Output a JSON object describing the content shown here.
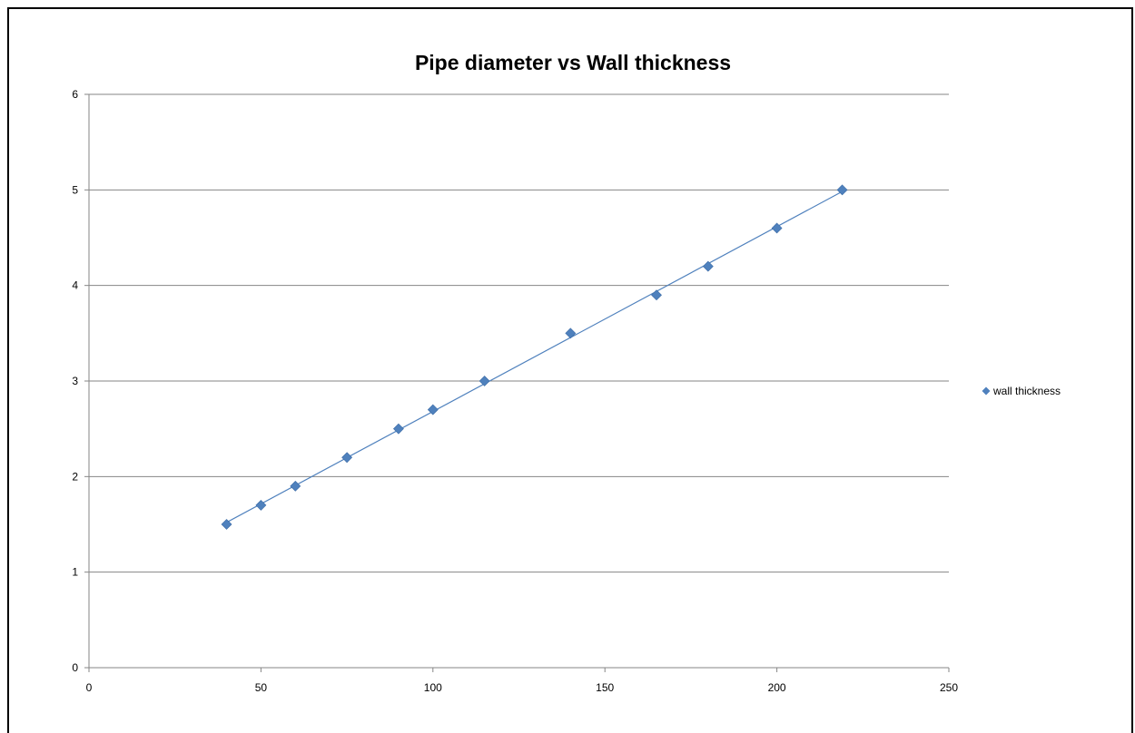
{
  "chart_data": {
    "type": "scatter",
    "title": "Pipe diameter vs Wall thickness",
    "xlabel": "",
    "ylabel": "",
    "xlim": [
      0,
      250
    ],
    "ylim": [
      0,
      6
    ],
    "x_ticks": [
      0,
      50,
      100,
      150,
      200,
      250
    ],
    "y_ticks": [
      0,
      1,
      2,
      3,
      4,
      5,
      6
    ],
    "grid": {
      "horizontal": true,
      "vertical": false
    },
    "legend_position": "right",
    "trendline": "linear",
    "series": [
      {
        "name": "wall thickness",
        "color": "#4F81BD",
        "marker": "diamond",
        "points": [
          {
            "x": 40,
            "y": 1.5
          },
          {
            "x": 50,
            "y": 1.7
          },
          {
            "x": 60,
            "y": 1.9
          },
          {
            "x": 75,
            "y": 2.2
          },
          {
            "x": 90,
            "y": 2.5
          },
          {
            "x": 100,
            "y": 2.7
          },
          {
            "x": 115,
            "y": 3.0
          },
          {
            "x": 140,
            "y": 3.5
          },
          {
            "x": 165,
            "y": 3.9
          },
          {
            "x": 180,
            "y": 4.2
          },
          {
            "x": 200,
            "y": 4.6
          },
          {
            "x": 219,
            "y": 5.0
          }
        ]
      }
    ]
  },
  "colors": {
    "grid": "#868686",
    "axis": "#868686",
    "marker": "#4F81BD",
    "trendline": "#4F81BD"
  }
}
